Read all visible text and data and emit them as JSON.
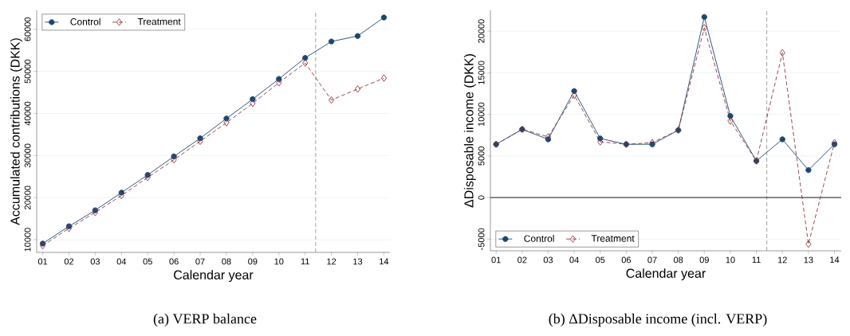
{
  "chart_data": [
    {
      "type": "line",
      "title": "(a) VERP balance",
      "xlabel": "Calendar year",
      "ylabel": "Accumulated contributions (DKK)",
      "x": [
        1,
        2,
        3,
        4,
        5,
        6,
        7,
        8,
        9,
        10,
        11,
        12,
        13,
        14
      ],
      "xlim": [
        0.77,
        14.23
      ],
      "ylim": [
        7000,
        64500
      ],
      "xticks": [
        {
          "value": 1,
          "label": "01"
        },
        {
          "value": 2,
          "label": "02"
        },
        {
          "value": 3,
          "label": "03"
        },
        {
          "value": 4,
          "label": "04"
        },
        {
          "value": 5,
          "label": "05"
        },
        {
          "value": 6,
          "label": "06"
        },
        {
          "value": 7,
          "label": "07"
        },
        {
          "value": 8,
          "label": "08"
        },
        {
          "value": 9,
          "label": "09"
        },
        {
          "value": 10,
          "label": "10"
        },
        {
          "value": 11,
          "label": "11"
        },
        {
          "value": 12,
          "label": "12"
        },
        {
          "value": 13,
          "label": "13"
        },
        {
          "value": 14,
          "label": "14"
        }
      ],
      "yticks": [
        10000,
        20000,
        30000,
        40000,
        50000,
        60000
      ],
      "series": [
        {
          "name": "Control",
          "color": "#1a476f",
          "marker": "circle",
          "line_style": "solid",
          "values": [
            9100,
            13200,
            17000,
            21200,
            25400,
            29800,
            34100,
            38800,
            43400,
            48200,
            53200,
            57100,
            58400,
            62800
          ]
        },
        {
          "name": "Treatment",
          "color": "#90353b",
          "marker": "diamond",
          "line_style": "dashed",
          "values": [
            8600,
            12700,
            16500,
            20500,
            24800,
            29000,
            33400,
            37800,
            42400,
            47300,
            52000,
            43200,
            45800,
            48400
          ]
        }
      ],
      "ref_lines": [
        {
          "axis": "x",
          "value": 11.4,
          "color": "#999999",
          "line_style": "dashed"
        }
      ],
      "grid": "y",
      "legend": "top left"
    },
    {
      "type": "line",
      "title": "(b) ΔDisposable income (incl. VERP)",
      "xlabel": "Calendar year",
      "ylabel": "ΔDisposable income (DKK)",
      "x": [
        1,
        2,
        3,
        4,
        5,
        6,
        7,
        8,
        9,
        10,
        11,
        12,
        13,
        14
      ],
      "xlim": [
        0.78,
        14.26
      ],
      "ylim": [
        -6400,
        22500
      ],
      "xticks": [
        {
          "value": 1,
          "label": "01"
        },
        {
          "value": 2,
          "label": "02"
        },
        {
          "value": 3,
          "label": "03"
        },
        {
          "value": 4,
          "label": "04"
        },
        {
          "value": 5,
          "label": "05"
        },
        {
          "value": 6,
          "label": "06"
        },
        {
          "value": 7,
          "label": "07"
        },
        {
          "value": 8,
          "label": "08"
        },
        {
          "value": 9,
          "label": "09"
        },
        {
          "value": 10,
          "label": "10"
        },
        {
          "value": 11,
          "label": "11"
        },
        {
          "value": 12,
          "label": "12"
        },
        {
          "value": 13,
          "label": "13"
        },
        {
          "value": 14,
          "label": "14"
        }
      ],
      "yticks": [
        -5000,
        0,
        5000,
        10000,
        15000,
        20000
      ],
      "series": [
        {
          "name": "Control",
          "color": "#1a476f",
          "marker": "circle",
          "line_style": "solid",
          "values": [
            6400,
            8200,
            7000,
            12800,
            7100,
            6400,
            6400,
            8100,
            21700,
            9800,
            4400,
            7000,
            3300,
            6400
          ]
        },
        {
          "name": "Treatment",
          "color": "#90353b",
          "marker": "diamond",
          "line_style": "dashed",
          "values": [
            6400,
            8200,
            7300,
            12300,
            6700,
            6400,
            6600,
            8100,
            20400,
            9200,
            4400,
            17400,
            -5600,
            6600
          ]
        }
      ],
      "ref_lines": [
        {
          "axis": "x",
          "value": 11.4,
          "color": "#999999",
          "line_style": "dashed"
        },
        {
          "axis": "y",
          "value": 0,
          "color": "#000000",
          "line_style": "solid"
        }
      ],
      "grid": "y",
      "legend": "bottom left"
    }
  ]
}
